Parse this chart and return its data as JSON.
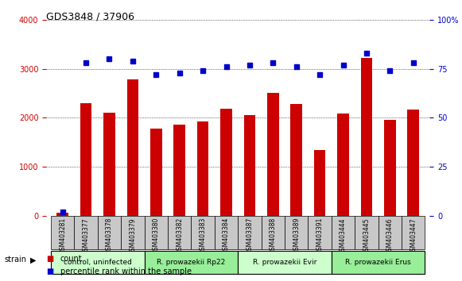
{
  "title": "GDS3848 / 37906",
  "samples": [
    "GSM403281",
    "GSM403377",
    "GSM403378",
    "GSM403379",
    "GSM403380",
    "GSM403382",
    "GSM403383",
    "GSM403384",
    "GSM403387",
    "GSM403388",
    "GSM403389",
    "GSM403391",
    "GSM403444",
    "GSM403445",
    "GSM403446",
    "GSM403447"
  ],
  "counts": [
    60,
    2300,
    2100,
    2780,
    1780,
    1860,
    1920,
    2180,
    2050,
    2500,
    2280,
    1340,
    2080,
    3220,
    1960,
    2160
  ],
  "percentiles": [
    2,
    78,
    80,
    79,
    72,
    73,
    74,
    76,
    77,
    78,
    76,
    72,
    77,
    83,
    74,
    78
  ],
  "bar_color": "#cc0000",
  "dot_color": "#0000cc",
  "ylim_left": [
    0,
    4000
  ],
  "ylim_right": [
    0,
    100
  ],
  "yticks_left": [
    0,
    1000,
    2000,
    3000,
    4000
  ],
  "yticks_right": [
    0,
    25,
    50,
    75,
    100
  ],
  "groups": [
    {
      "label": "control, uninfected",
      "start": 0,
      "end": 4,
      "color": "#ccffcc"
    },
    {
      "label": "R. prowazekii Rp22",
      "start": 4,
      "end": 8,
      "color": "#99ee99"
    },
    {
      "label": "R. prowazekii Evir",
      "start": 8,
      "end": 12,
      "color": "#ccffcc"
    },
    {
      "label": "R. prowazekii Erus",
      "start": 12,
      "end": 16,
      "color": "#99ee99"
    }
  ],
  "legend_count_color": "#cc0000",
  "legend_pct_color": "#0000cc",
  "bg_plot": "#e8e8e8",
  "bg_label_row": "#c8c8c8",
  "grid_color": "black",
  "right_axis_color": "#0000cc",
  "left_axis_color": "#cc0000"
}
